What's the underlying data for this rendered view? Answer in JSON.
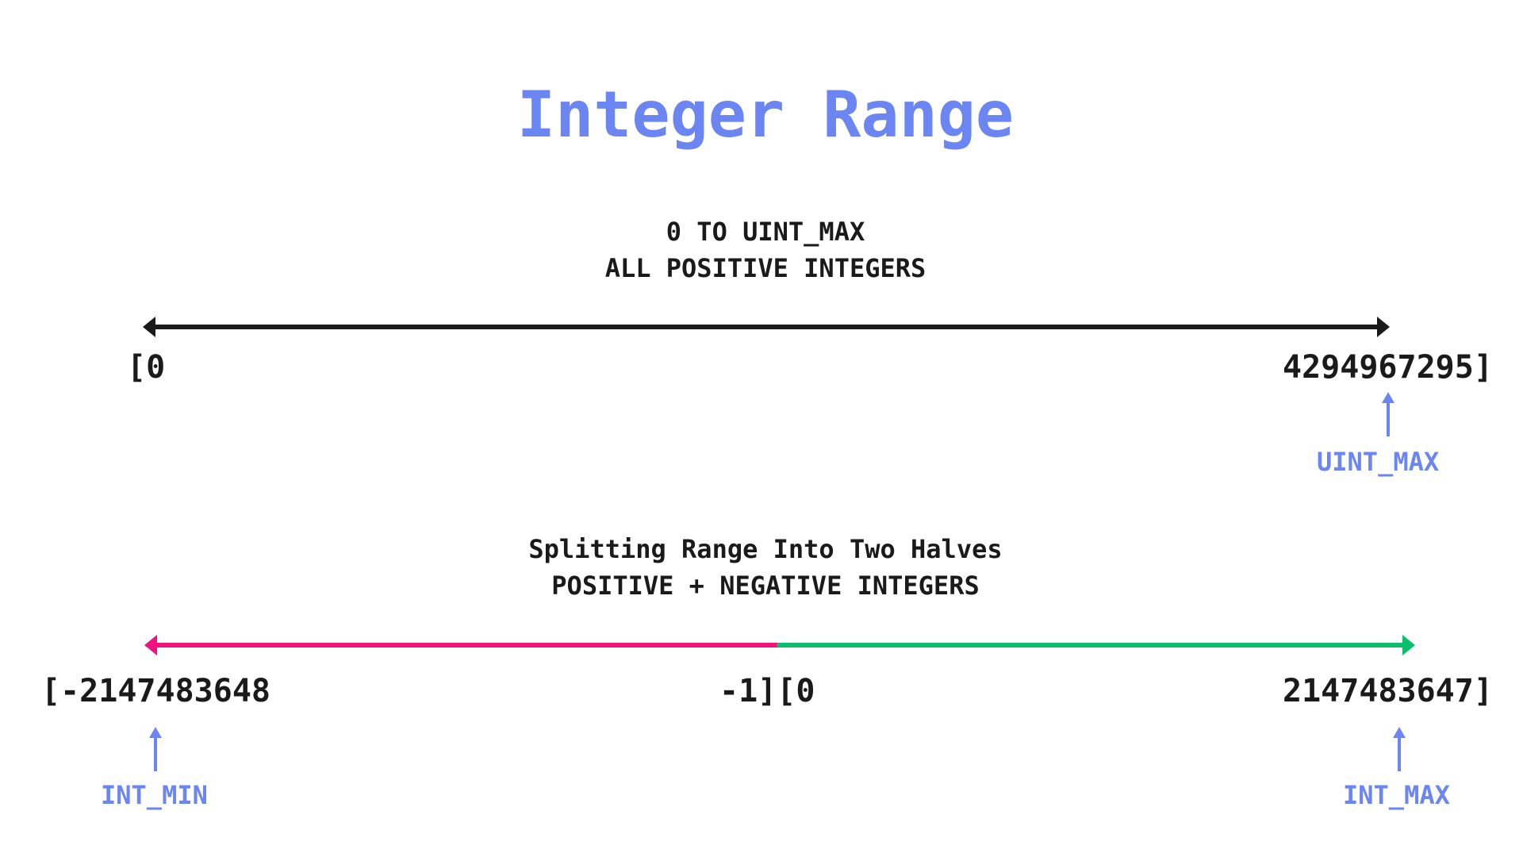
{
  "title": "Integer Range",
  "unsigned": {
    "caption_line1": "0 TO UINT_MAX",
    "caption_line2": "ALL POSITIVE INTEGERS",
    "start_label": "[0",
    "end_label": "4294967295]",
    "max_marker": "UINT_MAX"
  },
  "signed": {
    "caption_line1": "Splitting Range Into Two Halves",
    "caption_line2": "POSITIVE + NEGATIVE INTEGERS",
    "start_label": "[-2147483648",
    "mid_label": "-1][0",
    "end_label": "2147483647]",
    "min_marker": "INT_MIN",
    "max_marker": "INT_MAX"
  },
  "colors": {
    "accent": "#6b86f2",
    "unsigned_line": "#1a1a1a",
    "negative_half": "#f0127f",
    "positive_half": "#0bbf6a",
    "text": "#1a1a1a"
  }
}
